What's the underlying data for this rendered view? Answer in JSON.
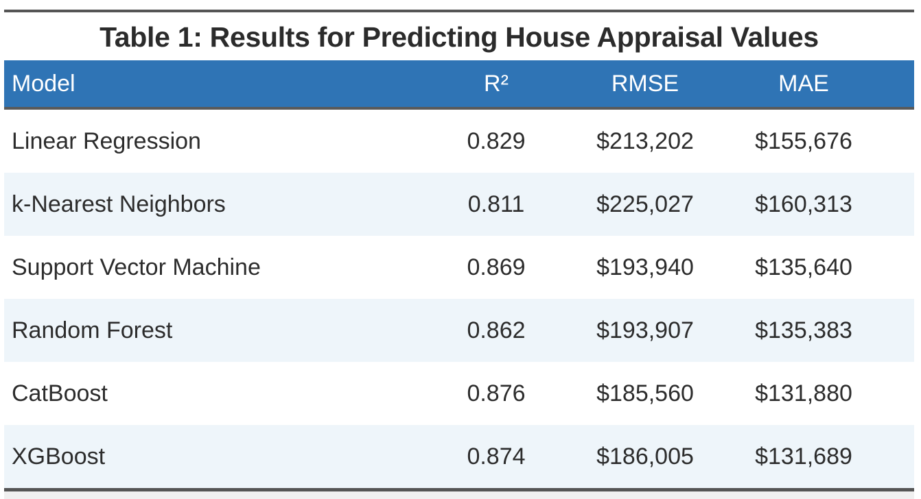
{
  "title": "Table 1: Results for Predicting House Appraisal Values",
  "table": {
    "columns": [
      "Model",
      "R²",
      "RMSE",
      "MAE"
    ],
    "rows": [
      {
        "model": "Linear Regression",
        "r2": "0.829",
        "rmse": "$213,202",
        "mae": "$155,676"
      },
      {
        "model": "k-Nearest Neighbors",
        "r2": "0.811",
        "rmse": "$225,027",
        "mae": "$160,313"
      },
      {
        "model": "Support Vector Machine",
        "r2": "0.869",
        "rmse": "$193,940",
        "mae": "$135,640"
      },
      {
        "model": "Random Forest",
        "r2": "0.862",
        "rmse": "$193,907",
        "mae": "$135,383"
      },
      {
        "model": "CatBoost",
        "r2": "0.876",
        "rmse": "$185,560",
        "mae": "$131,880"
      },
      {
        "model": "XGBoost",
        "r2": "0.874",
        "rmse": "$186,005",
        "mae": "$131,689"
      }
    ]
  },
  "colors": {
    "header_background": "#2f74b5",
    "alternate_row_background": "#eef5fa",
    "rule_color": "#555555"
  }
}
